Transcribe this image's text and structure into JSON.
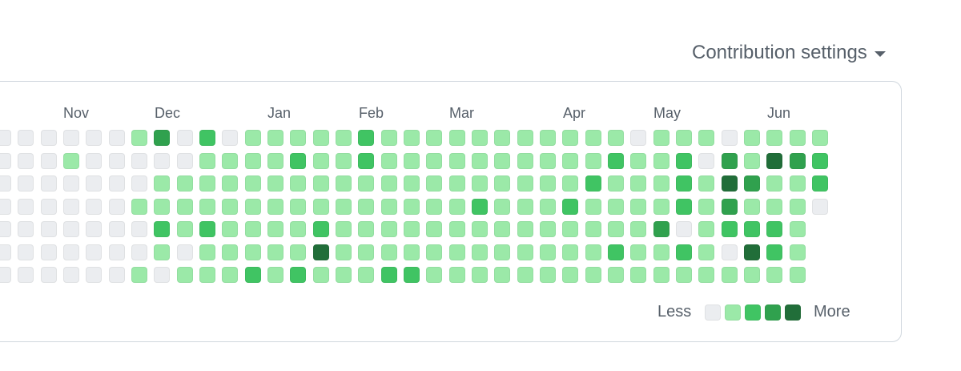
{
  "settings": {
    "label": "Contribution settings"
  },
  "months": [
    "Nov",
    "Dec",
    "Jan",
    "Feb",
    "Mar",
    "Apr",
    "May",
    "Jun"
  ],
  "legend": {
    "less": "Less",
    "more": "More"
  },
  "level_colors": [
    "#ebedf0",
    "#9be9a8",
    "#40c463",
    "#30a14e",
    "#216e39"
  ],
  "contribution_levels": [
    [
      0,
      0,
      0,
      0,
      0,
      0,
      0
    ],
    [
      0,
      0,
      0,
      0,
      0,
      0,
      0
    ],
    [
      0,
      0,
      0,
      0,
      0,
      0,
      0
    ],
    [
      0,
      1,
      0,
      0,
      0,
      0,
      0
    ],
    [
      0,
      0,
      0,
      0,
      0,
      0,
      0
    ],
    [
      0,
      0,
      0,
      0,
      0,
      0,
      0
    ],
    [
      1,
      0,
      0,
      1,
      0,
      0,
      1
    ],
    [
      3,
      0,
      1,
      1,
      2,
      1,
      0
    ],
    [
      0,
      0,
      1,
      1,
      1,
      0,
      1
    ],
    [
      2,
      1,
      1,
      1,
      2,
      1,
      1
    ],
    [
      0,
      1,
      1,
      1,
      1,
      1,
      1
    ],
    [
      1,
      1,
      1,
      1,
      1,
      1,
      2
    ],
    [
      1,
      1,
      1,
      1,
      1,
      1,
      1
    ],
    [
      1,
      2,
      1,
      1,
      1,
      1,
      2
    ],
    [
      1,
      1,
      1,
      1,
      2,
      4,
      1
    ],
    [
      1,
      1,
      1,
      1,
      1,
      1,
      1
    ],
    [
      2,
      2,
      1,
      1,
      1,
      1,
      1
    ],
    [
      1,
      1,
      1,
      1,
      1,
      1,
      2
    ],
    [
      1,
      1,
      1,
      1,
      1,
      1,
      2
    ],
    [
      1,
      1,
      1,
      1,
      1,
      1,
      1
    ],
    [
      1,
      1,
      1,
      1,
      1,
      1,
      1
    ],
    [
      1,
      1,
      1,
      2,
      1,
      1,
      1
    ],
    [
      1,
      1,
      1,
      1,
      1,
      1,
      1
    ],
    [
      1,
      1,
      1,
      1,
      1,
      1,
      1
    ],
    [
      1,
      1,
      1,
      1,
      1,
      1,
      1
    ],
    [
      1,
      1,
      1,
      2,
      1,
      1,
      1
    ],
    [
      1,
      1,
      2,
      1,
      1,
      1,
      1
    ],
    [
      1,
      2,
      1,
      1,
      1,
      2,
      1
    ],
    [
      0,
      1,
      1,
      1,
      1,
      1,
      1
    ],
    [
      1,
      1,
      1,
      1,
      3,
      1,
      1
    ],
    [
      1,
      2,
      2,
      2,
      0,
      2,
      1
    ],
    [
      1,
      0,
      1,
      1,
      1,
      1,
      1
    ],
    [
      0,
      3,
      4,
      3,
      2,
      0,
      1
    ],
    [
      1,
      1,
      3,
      1,
      2,
      4,
      1
    ],
    [
      1,
      4,
      1,
      1,
      2,
      2,
      1
    ],
    [
      1,
      3,
      1,
      1,
      1,
      1,
      1
    ],
    [
      1,
      2,
      2,
      0,
      null,
      null,
      null
    ]
  ]
}
